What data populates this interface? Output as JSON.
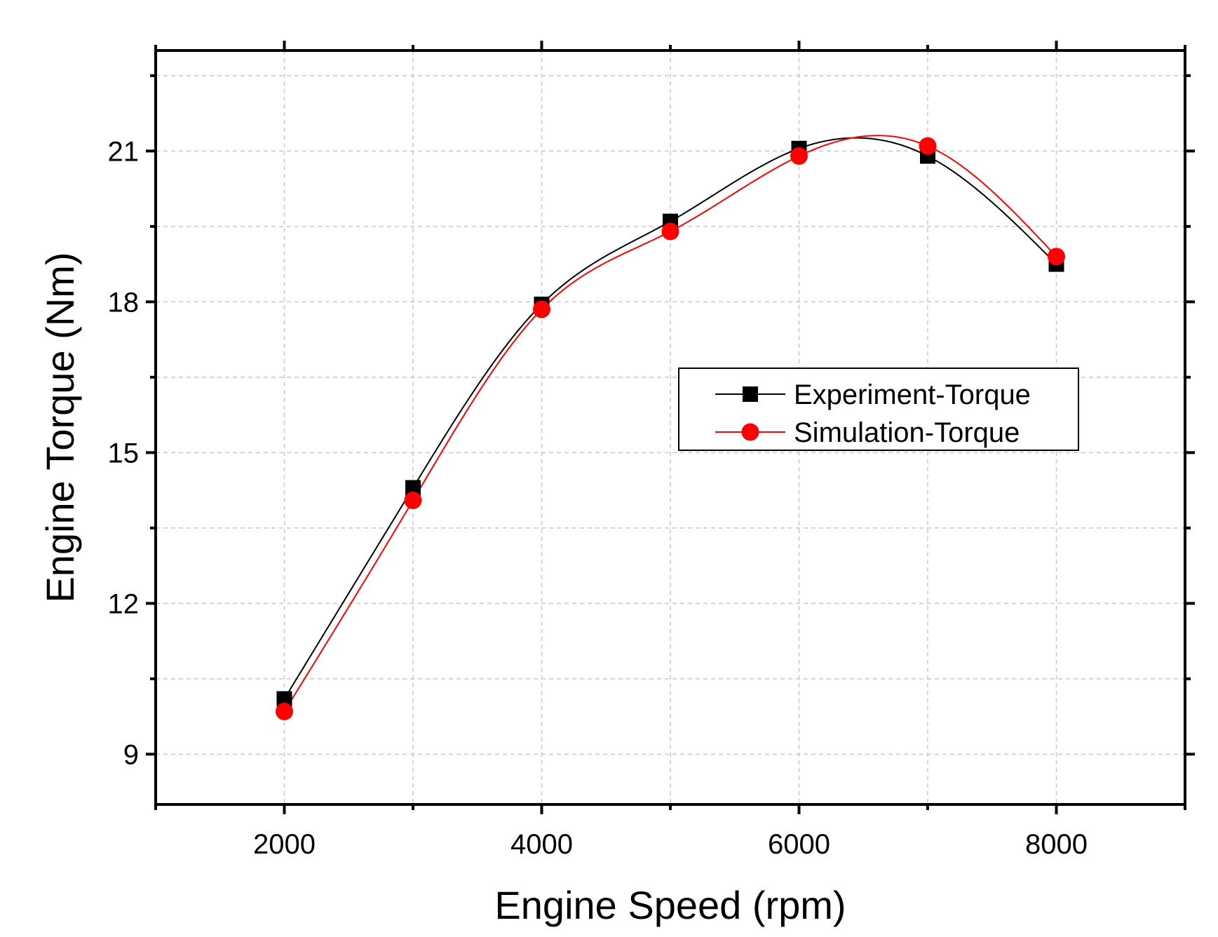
{
  "chart_data": {
    "type": "line",
    "title": "",
    "xlabel": "Engine Speed (rpm)",
    "ylabel": "Engine Torque (Nm)",
    "xlim": [
      1000,
      9000
    ],
    "ylim": [
      8,
      23
    ],
    "xticks": [
      2000,
      4000,
      6000,
      8000
    ],
    "xticks_minor": [
      1000,
      3000,
      5000,
      7000,
      9000
    ],
    "yticks": [
      9,
      12,
      15,
      18,
      21
    ],
    "yticks_minor": [
      10.5,
      13.5,
      16.5,
      19.5,
      22.5
    ],
    "grid": true,
    "legend_position": "center-right",
    "x": [
      2000,
      3000,
      4000,
      5000,
      6000,
      7000,
      8000
    ],
    "series": [
      {
        "name": "Experiment-Torque",
        "marker": "square",
        "color": "#000000",
        "values": [
          10.1,
          14.3,
          17.95,
          19.6,
          21.05,
          20.9,
          18.75
        ]
      },
      {
        "name": "Simulation-Torque",
        "marker": "circle",
        "color": "#ff0000",
        "values": [
          9.85,
          14.05,
          17.85,
          19.4,
          20.9,
          21.1,
          18.9
        ]
      }
    ]
  }
}
